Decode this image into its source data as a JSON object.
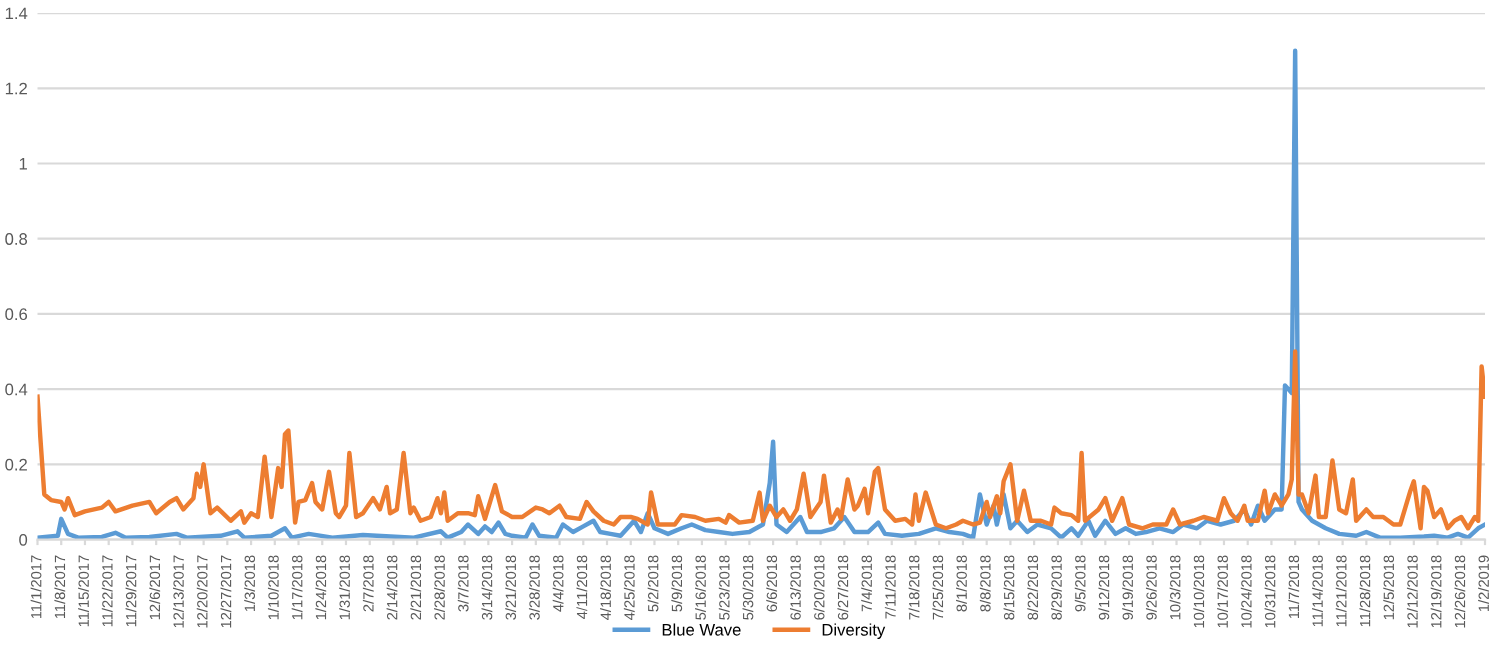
{
  "chart_data": {
    "type": "line",
    "x": [
      "2017-11-01",
      "2017-11-03",
      "2017-11-05",
      "2017-11-08",
      "2017-11-09",
      "2017-11-10",
      "2017-11-12",
      "2017-11-15",
      "2017-11-20",
      "2017-11-22",
      "2017-11-24",
      "2017-11-29",
      "2017-12-04",
      "2017-12-06",
      "2017-12-10",
      "2017-12-12",
      "2017-12-14",
      "2017-12-17",
      "2017-12-18",
      "2017-12-19",
      "2017-12-20",
      "2017-12-22",
      "2017-12-24",
      "2017-12-28",
      "2017-12-31",
      "2018-01-01",
      "2018-01-03",
      "2018-01-05",
      "2018-01-07",
      "2018-01-09",
      "2018-01-11",
      "2018-01-12",
      "2018-01-13",
      "2018-01-14",
      "2018-01-16",
      "2018-01-17",
      "2018-01-19",
      "2018-01-21",
      "2018-01-22",
      "2018-01-24",
      "2018-01-26",
      "2018-01-28",
      "2018-01-29",
      "2018-01-31",
      "2018-02-01",
      "2018-02-03",
      "2018-02-05",
      "2018-02-08",
      "2018-02-10",
      "2018-02-12",
      "2018-02-13",
      "2018-02-15",
      "2018-02-17",
      "2018-02-19",
      "2018-02-20",
      "2018-02-22",
      "2018-02-25",
      "2018-02-27",
      "2018-02-28",
      "2018-03-01",
      "2018-03-02",
      "2018-03-05",
      "2018-03-08",
      "2018-03-10",
      "2018-03-11",
      "2018-03-13",
      "2018-03-16",
      "2018-03-18",
      "2018-03-21",
      "2018-03-24",
      "2018-03-28",
      "2018-03-30",
      "2018-04-01",
      "2018-04-04",
      "2018-04-06",
      "2018-04-10",
      "2018-04-12",
      "2018-04-14",
      "2018-04-17",
      "2018-04-20",
      "2018-04-22",
      "2018-04-25",
      "2018-04-27",
      "2018-04-30",
      "2018-05-01",
      "2018-05-03",
      "2018-05-08",
      "2018-05-10",
      "2018-05-14",
      "2018-05-17",
      "2018-05-21",
      "2018-05-23",
      "2018-05-24",
      "2018-05-27",
      "2018-05-31",
      "2018-06-02",
      "2018-06-03",
      "2018-06-05",
      "2018-06-07",
      "2018-06-09",
      "2018-06-11",
      "2018-06-13",
      "2018-06-15",
      "2018-06-17",
      "2018-06-20",
      "2018-06-21",
      "2018-06-23",
      "2018-06-25",
      "2018-06-26",
      "2018-06-28",
      "2018-06-30",
      "2018-07-01",
      "2018-07-03",
      "2018-07-04",
      "2018-07-06",
      "2018-07-07",
      "2018-07-09",
      "2018-07-12",
      "2018-07-15",
      "2018-07-17",
      "2018-07-18",
      "2018-07-19",
      "2018-07-21",
      "2018-07-24",
      "2018-07-27",
      "2018-07-30",
      "2018-08-01",
      "2018-08-04",
      "2018-08-06",
      "2018-08-08",
      "2018-08-09",
      "2018-08-11",
      "2018-08-12",
      "2018-08-13",
      "2018-08-15",
      "2018-08-17",
      "2018-08-19",
      "2018-08-21",
      "2018-08-24",
      "2018-08-27",
      "2018-08-28",
      "2018-08-30",
      "2018-09-02",
      "2018-09-04",
      "2018-09-05",
      "2018-09-06",
      "2018-09-10",
      "2018-09-12",
      "2018-09-14",
      "2018-09-17",
      "2018-09-19",
      "2018-09-23",
      "2018-09-26",
      "2018-09-30",
      "2018-10-02",
      "2018-10-04",
      "2018-10-08",
      "2018-10-11",
      "2018-10-15",
      "2018-10-17",
      "2018-10-19",
      "2018-10-21",
      "2018-10-23",
      "2018-10-24",
      "2018-10-27",
      "2018-10-29",
      "2018-10-30",
      "2018-11-01",
      "2018-11-03",
      "2018-11-05",
      "2018-11-06",
      "2018-11-07",
      "2018-11-08",
      "2018-11-09",
      "2018-11-11",
      "2018-11-13",
      "2018-11-14",
      "2018-11-16",
      "2018-11-18",
      "2018-11-20",
      "2018-11-22",
      "2018-11-24",
      "2018-11-25",
      "2018-11-28",
      "2018-11-30",
      "2018-12-03",
      "2018-12-06",
      "2018-12-08",
      "2018-12-11",
      "2018-12-12",
      "2018-12-14",
      "2018-12-15",
      "2018-12-16",
      "2018-12-18",
      "2018-12-20",
      "2018-12-22",
      "2018-12-24",
      "2018-12-26",
      "2018-12-28",
      "2018-12-30",
      "2018-12-31",
      "2019-01-01",
      "2019-01-02"
    ],
    "series": [
      {
        "name": "Blue Wave",
        "color": "#5b9bd5",
        "x": [
          "2017-11-01",
          "2017-11-07",
          "2017-11-08",
          "2017-11-10",
          "2017-11-13",
          "2017-11-20",
          "2017-11-24",
          "2017-11-27",
          "2017-12-04",
          "2017-12-12",
          "2017-12-15",
          "2017-12-25",
          "2017-12-30",
          "2018-01-01",
          "2018-01-09",
          "2018-01-13",
          "2018-01-15",
          "2018-01-20",
          "2018-01-27",
          "2018-02-05",
          "2018-02-20",
          "2018-02-28",
          "2018-03-02",
          "2018-03-06",
          "2018-03-08",
          "2018-03-11",
          "2018-03-13",
          "2018-03-15",
          "2018-03-17",
          "2018-03-19",
          "2018-03-21",
          "2018-03-25",
          "2018-03-27",
          "2018-03-29",
          "2018-04-03",
          "2018-04-05",
          "2018-04-08",
          "2018-04-11",
          "2018-04-14",
          "2018-04-16",
          "2018-04-19",
          "2018-04-22",
          "2018-04-26",
          "2018-04-28",
          "2018-04-30",
          "2018-05-02",
          "2018-05-06",
          "2018-05-10",
          "2018-05-13",
          "2018-05-17",
          "2018-05-21",
          "2018-05-25",
          "2018-05-30",
          "2018-06-03",
          "2018-06-05",
          "2018-06-06",
          "2018-06-07",
          "2018-06-10",
          "2018-06-14",
          "2018-06-16",
          "2018-06-20",
          "2018-06-24",
          "2018-06-27",
          "2018-06-30",
          "2018-07-04",
          "2018-07-07",
          "2018-07-09",
          "2018-07-14",
          "2018-07-19",
          "2018-07-24",
          "2018-07-28",
          "2018-08-01",
          "2018-08-04",
          "2018-08-06",
          "2018-08-08",
          "2018-08-10",
          "2018-08-11",
          "2018-08-13",
          "2018-08-15",
          "2018-08-17",
          "2018-08-20",
          "2018-08-23",
          "2018-08-27",
          "2018-08-30",
          "2018-09-02",
          "2018-09-04",
          "2018-09-07",
          "2018-09-09",
          "2018-09-12",
          "2018-09-15",
          "2018-09-18",
          "2018-09-21",
          "2018-09-24",
          "2018-09-28",
          "2018-10-02",
          "2018-10-05",
          "2018-10-09",
          "2018-10-12",
          "2018-10-16",
          "2018-10-20",
          "2018-10-23",
          "2018-10-25",
          "2018-10-27",
          "2018-10-29",
          "2018-11-01",
          "2018-11-03",
          "2018-11-04",
          "2018-11-05",
          "2018-11-06",
          "2018-11-07",
          "2018-11-08",
          "2018-11-09",
          "2018-11-12",
          "2018-11-16",
          "2018-11-20",
          "2018-11-25",
          "2018-11-28",
          "2018-12-02",
          "2018-12-08",
          "2018-12-15",
          "2018-12-18",
          "2018-12-22",
          "2018-12-25",
          "2018-12-28",
          "2018-12-31",
          "2019-01-01",
          "2019-01-02"
        ],
        "values": [
          0.005,
          0.01,
          0.055,
          0.015,
          0.005,
          0.007,
          0.018,
          0.005,
          0.007,
          0.015,
          0.005,
          0.01,
          0.022,
          0.005,
          0.01,
          0.03,
          0.005,
          0.015,
          0.005,
          0.012,
          0.005,
          0.022,
          0.005,
          0.02,
          0.04,
          0.015,
          0.035,
          0.02,
          0.045,
          0.015,
          0.01,
          0.005,
          0.04,
          0.01,
          0.005,
          0.04,
          0.02,
          0.035,
          0.05,
          0.02,
          0.015,
          0.01,
          0.05,
          0.02,
          0.07,
          0.03,
          0.015,
          0.03,
          0.04,
          0.025,
          0.02,
          0.015,
          0.02,
          0.04,
          0.15,
          0.26,
          0.04,
          0.02,
          0.06,
          0.02,
          0.02,
          0.03,
          0.06,
          0.02,
          0.02,
          0.045,
          0.015,
          0.01,
          0.015,
          0.03,
          0.02,
          0.015,
          0.005,
          0.12,
          0.04,
          0.09,
          0.04,
          0.12,
          0.03,
          0.05,
          0.02,
          0.04,
          0.03,
          0.005,
          0.03,
          0.01,
          0.05,
          0.01,
          0.05,
          0.015,
          0.03,
          0.015,
          0.02,
          0.03,
          0.02,
          0.04,
          0.03,
          0.05,
          0.04,
          0.05,
          0.08,
          0.04,
          0.09,
          0.05,
          0.08,
          0.08,
          0.41,
          0.4,
          0.39,
          1.3,
          0.1,
          0.08,
          0.05,
          0.03,
          0.015,
          0.01,
          0.02,
          0.005,
          0.005,
          0.008,
          0.01,
          0.005,
          0.015,
          0.005,
          0.03,
          0.035,
          0.04
        ]
      },
      {
        "name": "Diversity",
        "color": "#ed7d31",
        "values": [
          0.38,
          0.12,
          0.105,
          0.1,
          0.08,
          0.11,
          0.065,
          0.075,
          0.085,
          0.1,
          0.075,
          0.09,
          0.1,
          0.07,
          0.1,
          0.11,
          0.08,
          0.11,
          0.175,
          0.14,
          0.2,
          0.07,
          0.085,
          0.05,
          0.075,
          0.045,
          0.07,
          0.06,
          0.22,
          0.06,
          0.19,
          0.14,
          0.28,
          0.29,
          0.045,
          0.1,
          0.105,
          0.15,
          0.1,
          0.08,
          0.18,
          0.07,
          0.06,
          0.09,
          0.23,
          0.06,
          0.07,
          0.11,
          0.08,
          0.14,
          0.07,
          0.08,
          0.23,
          0.07,
          0.085,
          0.05,
          0.06,
          0.11,
          0.07,
          0.125,
          0.05,
          0.07,
          0.07,
          0.065,
          0.115,
          0.055,
          0.145,
          0.075,
          0.06,
          0.06,
          0.085,
          0.08,
          0.07,
          0.09,
          0.06,
          0.055,
          0.1,
          0.075,
          0.05,
          0.04,
          0.06,
          0.06,
          0.055,
          0.04,
          0.125,
          0.04,
          0.04,
          0.065,
          0.06,
          0.05,
          0.055,
          0.045,
          0.065,
          0.045,
          0.05,
          0.125,
          0.05,
          0.09,
          0.06,
          0.08,
          0.05,
          0.08,
          0.175,
          0.06,
          0.1,
          0.17,
          0.045,
          0.08,
          0.055,
          0.16,
          0.08,
          0.09,
          0.135,
          0.07,
          0.18,
          0.19,
          0.08,
          0.05,
          0.055,
          0.04,
          0.12,
          0.05,
          0.125,
          0.04,
          0.03,
          0.04,
          0.05,
          0.04,
          0.045,
          0.1,
          0.06,
          0.115,
          0.07,
          0.155,
          0.2,
          0.05,
          0.13,
          0.05,
          0.05,
          0.04,
          0.085,
          0.07,
          0.065,
          0.05,
          0.23,
          0.05,
          0.08,
          0.11,
          0.05,
          0.11,
          0.04,
          0.03,
          0.04,
          0.04,
          0.08,
          0.04,
          0.05,
          0.06,
          0.05,
          0.11,
          0.07,
          0.05,
          0.09,
          0.05,
          0.05,
          0.13,
          0.07,
          0.12,
          0.09,
          0.12,
          0.16,
          0.5,
          0.12,
          0.12,
          0.07,
          0.17,
          0.06,
          0.06,
          0.21,
          0.08,
          0.07,
          0.16,
          0.05,
          0.08,
          0.06,
          0.06,
          0.04,
          0.04,
          0.13,
          0.155,
          0.03,
          0.14,
          0.13,
          0.06,
          0.08,
          0.03,
          0.05,
          0.06,
          0.03,
          0.06,
          0.05,
          0.46,
          0.38
        ]
      }
    ],
    "xlim": [
      "2017-11-01",
      "2019-01-02"
    ],
    "xticks": [
      {
        "value": "2017-11-01",
        "label": "11/1/2017"
      },
      {
        "value": "2017-11-08",
        "label": "11/8/2017"
      },
      {
        "value": "2017-11-15",
        "label": "11/15/2017"
      },
      {
        "value": "2017-11-22",
        "label": "11/22/2017"
      },
      {
        "value": "2017-11-29",
        "label": "11/29/2017"
      },
      {
        "value": "2017-12-06",
        "label": "12/6/2017"
      },
      {
        "value": "2017-12-13",
        "label": "12/13/2017"
      },
      {
        "value": "2017-12-20",
        "label": "12/20/2017"
      },
      {
        "value": "2017-12-27",
        "label": "12/27/2017"
      },
      {
        "value": "2018-01-03",
        "label": "1/3/2018"
      },
      {
        "value": "2018-01-10",
        "label": "1/10/2018"
      },
      {
        "value": "2018-01-17",
        "label": "1/17/2018"
      },
      {
        "value": "2018-01-24",
        "label": "1/24/2018"
      },
      {
        "value": "2018-01-31",
        "label": "1/31/2018"
      },
      {
        "value": "2018-02-07",
        "label": "2/7/2018"
      },
      {
        "value": "2018-02-14",
        "label": "2/14/2018"
      },
      {
        "value": "2018-02-21",
        "label": "2/21/2018"
      },
      {
        "value": "2018-02-28",
        "label": "2/28/2018"
      },
      {
        "value": "2018-03-07",
        "label": "3/7/2018"
      },
      {
        "value": "2018-03-14",
        "label": "3/14/2018"
      },
      {
        "value": "2018-03-21",
        "label": "3/21/2018"
      },
      {
        "value": "2018-03-28",
        "label": "3/28/2018"
      },
      {
        "value": "2018-04-04",
        "label": "4/4/2018"
      },
      {
        "value": "2018-04-11",
        "label": "4/11/2018"
      },
      {
        "value": "2018-04-18",
        "label": "4/18/2018"
      },
      {
        "value": "2018-04-25",
        "label": "4/25/2018"
      },
      {
        "value": "2018-05-02",
        "label": "5/2/2018"
      },
      {
        "value": "2018-05-09",
        "label": "5/9/2018"
      },
      {
        "value": "2018-05-16",
        "label": "5/16/2018"
      },
      {
        "value": "2018-05-23",
        "label": "5/23/2018"
      },
      {
        "value": "2018-05-30",
        "label": "5/30/2018"
      },
      {
        "value": "2018-06-06",
        "label": "6/6/2018"
      },
      {
        "value": "2018-06-13",
        "label": "6/13/2018"
      },
      {
        "value": "2018-06-20",
        "label": "6/20/2018"
      },
      {
        "value": "2018-06-27",
        "label": "6/27/2018"
      },
      {
        "value": "2018-07-04",
        "label": "7/4/2018"
      },
      {
        "value": "2018-07-11",
        "label": "7/11/2018"
      },
      {
        "value": "2018-07-18",
        "label": "7/18/2018"
      },
      {
        "value": "2018-07-25",
        "label": "7/25/2018"
      },
      {
        "value": "2018-08-01",
        "label": "8/1/2018"
      },
      {
        "value": "2018-08-08",
        "label": "8/8/2018"
      },
      {
        "value": "2018-08-15",
        "label": "8/15/2018"
      },
      {
        "value": "2018-08-22",
        "label": "8/22/2018"
      },
      {
        "value": "2018-08-29",
        "label": "8/29/2018"
      },
      {
        "value": "2018-09-05",
        "label": "9/5/2018"
      },
      {
        "value": "2018-09-12",
        "label": "9/12/2018"
      },
      {
        "value": "2018-09-19",
        "label": "9/19/2018"
      },
      {
        "value": "2018-09-26",
        "label": "9/26/2018"
      },
      {
        "value": "2018-10-03",
        "label": "10/3/2018"
      },
      {
        "value": "2018-10-10",
        "label": "10/10/2018"
      },
      {
        "value": "2018-10-17",
        "label": "10/17/2018"
      },
      {
        "value": "2018-10-24",
        "label": "10/24/2018"
      },
      {
        "value": "2018-10-31",
        "label": "10/31/2018"
      },
      {
        "value": "2018-11-07",
        "label": "11/7/2018"
      },
      {
        "value": "2018-11-14",
        "label": "11/14/2018"
      },
      {
        "value": "2018-11-21",
        "label": "11/21/2018"
      },
      {
        "value": "2018-11-28",
        "label": "11/28/2018"
      },
      {
        "value": "2018-12-05",
        "label": "12/5/2018"
      },
      {
        "value": "2018-12-12",
        "label": "12/12/2018"
      },
      {
        "value": "2018-12-19",
        "label": "12/19/2018"
      },
      {
        "value": "2018-12-26",
        "label": "12/26/2018"
      },
      {
        "value": "2019-01-02",
        "label": "1/2/2019"
      }
    ],
    "ylim": [
      0,
      1.4
    ],
    "yticks": [
      0,
      0.2,
      0.4,
      0.6,
      0.8,
      1,
      1.2,
      1.4
    ],
    "grid": "y",
    "legend": "bottom",
    "marker": "none",
    "line_style": "solid"
  }
}
